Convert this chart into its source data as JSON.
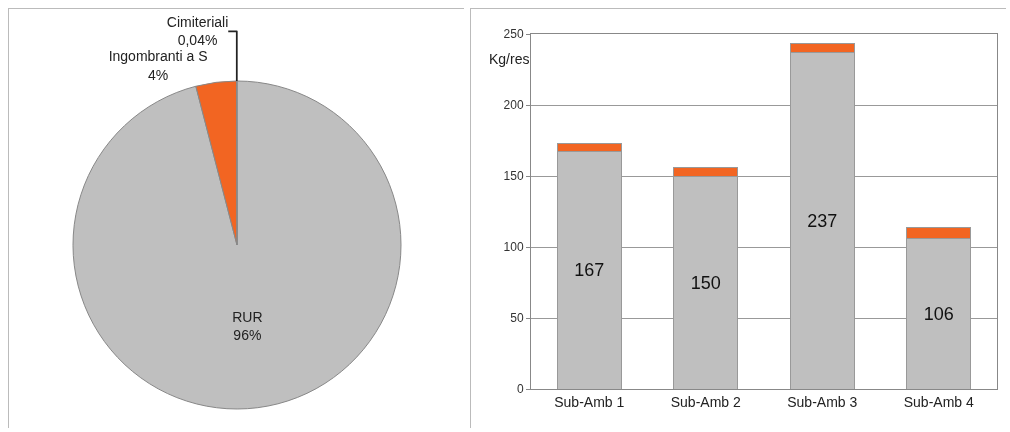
{
  "chart_data": [
    {
      "type": "pie",
      "categories": [
        "RUR",
        "Ingombranti a S",
        "Cimiteriali"
      ],
      "values": [
        96,
        4,
        0.04
      ],
      "value_labels": [
        "96%",
        "4%",
        "0,04%"
      ],
      "colors": [
        "#bfbfbf",
        "#f26522",
        "#f26522"
      ],
      "legend": false
    },
    {
      "type": "bar",
      "stacked": true,
      "categories": [
        "Sub-Amb 1",
        "Sub-Amb 2",
        "Sub-Amb 3",
        "Sub-Amb 4"
      ],
      "ylabel": "Kg/res",
      "ylim": [
        0,
        250
      ],
      "yticks": [
        0,
        50,
        100,
        150,
        200,
        250
      ],
      "grid": "y",
      "legend": false,
      "series": [
        {
          "color": "#bfbfbf",
          "values": [
            167,
            150,
            237,
            106
          ],
          "value_labels": [
            "167",
            "150",
            "237",
            "106"
          ]
        },
        {
          "color": "#f26522",
          "values": [
            6,
            6,
            6,
            8
          ]
        }
      ]
    }
  ]
}
